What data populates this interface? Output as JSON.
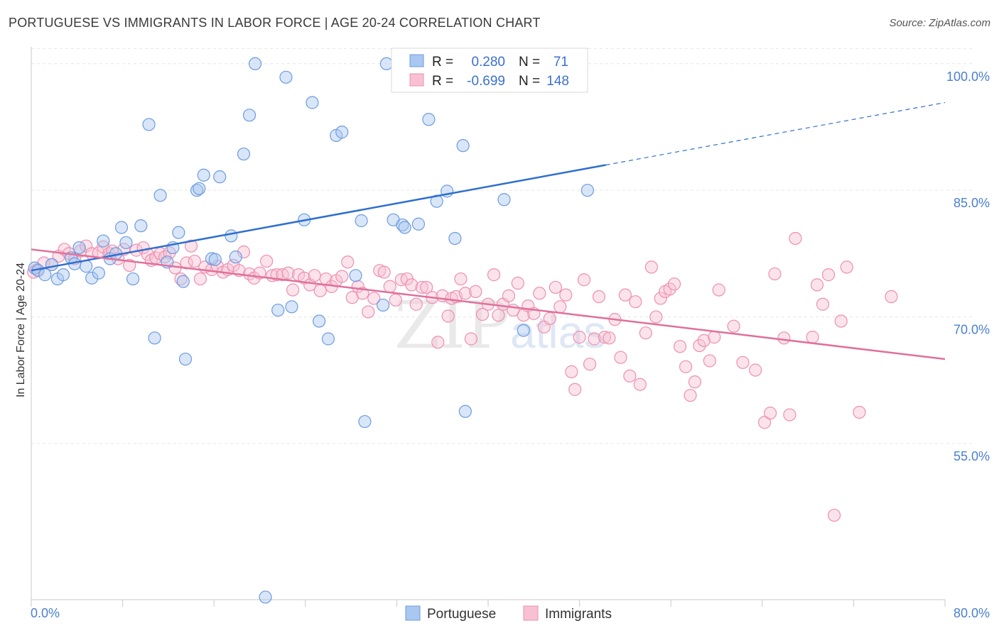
{
  "header": {
    "title": "PORTUGUESE VS IMMIGRANTS IN LABOR FORCE | AGE 20-24 CORRELATION CHART",
    "source": "Source: ZipAtlas.com"
  },
  "watermark": {
    "zip": "ZIP",
    "atlas": "atlas"
  },
  "chart_data": {
    "type": "scatter",
    "title": "PORTUGUESE VS IMMIGRANTS IN LABOR FORCE | AGE 20-24 CORRELATION CHART",
    "xlabel": "",
    "ylabel": "In Labor Force | Age 20-24",
    "xlim": [
      0,
      80
    ],
    "ylim": [
      36.5,
      102
    ],
    "x_tick_labels": [
      "0.0%",
      "80.0%"
    ],
    "y_ticks": [
      55,
      70,
      85,
      100
    ],
    "y_tick_labels": [
      "55.0%",
      "70.0%",
      "85.0%",
      "100.0%"
    ],
    "grid": true,
    "legend_position": "bottom-center",
    "colors": {
      "portuguese_fill": "#a9c7f0",
      "portuguese_stroke": "#6d9be0",
      "portuguese_line": "#2f6fd0",
      "immigrants_fill": "#f7c1d3",
      "immigrants_stroke": "#ee8fb0",
      "immigrants_line": "#e0709a"
    },
    "stats": [
      {
        "r_label": "R =",
        "r": "0.280",
        "n_label": "N =",
        "n": "71"
      },
      {
        "r_label": "R =",
        "r": "-0.699",
        "n_label": "N =",
        "n": "148"
      }
    ],
    "series": [
      {
        "name": "Portuguese",
        "trend": {
          "x": [
            0,
            50.3
          ],
          "y": [
            75.5,
            88.0
          ],
          "dashed_to": [
            80,
            95.4
          ]
        },
        "points": [
          [
            0.3,
            75.8
          ],
          [
            0.6,
            75.5
          ],
          [
            1.2,
            75.0
          ],
          [
            1.8,
            76.2
          ],
          [
            2.3,
            74.5
          ],
          [
            2.8,
            75.0
          ],
          [
            3.5,
            77.0
          ],
          [
            3.8,
            76.3
          ],
          [
            4.2,
            78.2
          ],
          [
            4.8,
            76.0
          ],
          [
            5.3,
            74.6
          ],
          [
            5.9,
            75.2
          ],
          [
            6.3,
            79.0
          ],
          [
            6.9,
            76.9
          ],
          [
            7.4,
            77.5
          ],
          [
            7.9,
            80.6
          ],
          [
            8.3,
            78.8
          ],
          [
            8.9,
            74.5
          ],
          [
            9.6,
            80.8
          ],
          [
            10.3,
            92.8
          ],
          [
            10.8,
            67.5
          ],
          [
            11.3,
            84.4
          ],
          [
            11.9,
            76.5
          ],
          [
            12.4,
            78.2
          ],
          [
            12.9,
            80.0
          ],
          [
            13.5,
            65.0
          ],
          [
            13.3,
            74.2
          ],
          [
            14.5,
            85.0
          ],
          [
            14.7,
            85.2
          ],
          [
            15.1,
            86.8
          ],
          [
            15.8,
            76.9
          ],
          [
            16.1,
            76.8
          ],
          [
            16.5,
            86.6
          ],
          [
            17.5,
            79.6
          ],
          [
            17.9,
            77.1
          ],
          [
            18.6,
            89.3
          ],
          [
            19.1,
            93.9
          ],
          [
            19.6,
            100.0
          ],
          [
            20.5,
            36.8
          ],
          [
            21.6,
            70.8
          ],
          [
            22.3,
            98.4
          ],
          [
            22.8,
            71.2
          ],
          [
            23.9,
            81.5
          ],
          [
            24.6,
            95.4
          ],
          [
            25.2,
            69.5
          ],
          [
            26.0,
            67.4
          ],
          [
            26.7,
            91.5
          ],
          [
            27.2,
            91.9
          ],
          [
            28.4,
            74.9
          ],
          [
            28.9,
            81.4
          ],
          [
            29.2,
            57.6
          ],
          [
            30.8,
            71.4
          ],
          [
            31.1,
            100.0
          ],
          [
            31.7,
            81.5
          ],
          [
            32.5,
            80.9
          ],
          [
            32.7,
            80.6
          ],
          [
            33.9,
            81.0
          ],
          [
            34.6,
            100.0
          ],
          [
            34.8,
            93.4
          ],
          [
            35.5,
            83.7
          ],
          [
            36.4,
            84.9
          ],
          [
            37.1,
            79.3
          ],
          [
            37.8,
            90.3
          ],
          [
            38.0,
            58.8
          ],
          [
            38.8,
            100.0
          ],
          [
            39.5,
            100.0
          ],
          [
            40.5,
            100.0
          ],
          [
            41.4,
            83.9
          ],
          [
            43.1,
            68.4
          ],
          [
            45.0,
            100.0
          ],
          [
            48.7,
            85.0
          ]
        ]
      },
      {
        "name": "Immigrants",
        "trend": {
          "x": [
            0,
            80
          ],
          "y": [
            78.0,
            65.0
          ]
        },
        "points": [
          [
            0.2,
            75.3
          ],
          [
            0.5,
            75.6
          ],
          [
            1.1,
            76.4
          ],
          [
            1.8,
            76.2
          ],
          [
            2.4,
            77.2
          ],
          [
            2.9,
            78.0
          ],
          [
            3.3,
            77.5
          ],
          [
            3.8,
            76.9
          ],
          [
            4.3,
            77.8
          ],
          [
            4.8,
            78.4
          ],
          [
            5.3,
            77.5
          ],
          [
            5.9,
            77.6
          ],
          [
            6.3,
            78.3
          ],
          [
            6.8,
            77.5
          ],
          [
            7.1,
            77.8
          ],
          [
            7.6,
            76.9
          ],
          [
            8.1,
            78.0
          ],
          [
            8.6,
            76.1
          ],
          [
            9.2,
            77.9
          ],
          [
            9.8,
            78.2
          ],
          [
            10.2,
            77.4
          ],
          [
            10.5,
            76.7
          ],
          [
            10.9,
            77.0
          ],
          [
            11.3,
            77.5
          ],
          [
            11.7,
            77.1
          ],
          [
            12.1,
            77.6
          ],
          [
            12.6,
            75.8
          ],
          [
            13.1,
            74.5
          ],
          [
            13.6,
            76.4
          ],
          [
            14.0,
            78.4
          ],
          [
            14.3,
            76.6
          ],
          [
            14.8,
            74.5
          ],
          [
            15.2,
            75.9
          ],
          [
            15.8,
            75.6
          ],
          [
            16.3,
            76.0
          ],
          [
            16.8,
            75.3
          ],
          [
            17.2,
            75.6
          ],
          [
            17.7,
            76.1
          ],
          [
            18.2,
            75.5
          ],
          [
            18.6,
            77.7
          ],
          [
            19.1,
            75.1
          ],
          [
            19.5,
            74.6
          ],
          [
            20.0,
            75.2
          ],
          [
            20.6,
            76.6
          ],
          [
            21.1,
            74.9
          ],
          [
            21.5,
            75.0
          ],
          [
            22.0,
            75.0
          ],
          [
            22.5,
            75.2
          ],
          [
            22.9,
            73.2
          ],
          [
            23.4,
            75.0
          ],
          [
            23.9,
            74.6
          ],
          [
            24.4,
            73.8
          ],
          [
            24.8,
            74.9
          ],
          [
            25.3,
            73.1
          ],
          [
            25.8,
            74.5
          ],
          [
            26.3,
            73.6
          ],
          [
            26.7,
            74.3
          ],
          [
            27.2,
            74.8
          ],
          [
            27.7,
            76.5
          ],
          [
            28.1,
            72.3
          ],
          [
            28.6,
            73.6
          ],
          [
            29.0,
            72.8
          ],
          [
            29.5,
            70.6
          ],
          [
            30.0,
            72.2
          ],
          [
            30.5,
            75.5
          ],
          [
            30.9,
            75.3
          ],
          [
            31.4,
            73.6
          ],
          [
            31.9,
            72.0
          ],
          [
            32.4,
            74.4
          ],
          [
            32.9,
            74.5
          ],
          [
            33.3,
            73.8
          ],
          [
            33.7,
            71.5
          ],
          [
            34.2,
            73.5
          ],
          [
            34.6,
            73.5
          ],
          [
            35.1,
            72.3
          ],
          [
            35.6,
            67.0
          ],
          [
            36.0,
            72.5
          ],
          [
            36.5,
            70.1
          ],
          [
            36.8,
            72.2
          ],
          [
            37.2,
            72.4
          ],
          [
            37.6,
            74.5
          ],
          [
            38.0,
            72.8
          ],
          [
            38.5,
            67.4
          ],
          [
            38.9,
            73.0
          ],
          [
            39.5,
            70.3
          ],
          [
            40.0,
            71.5
          ],
          [
            40.5,
            75.0
          ],
          [
            40.9,
            70.2
          ],
          [
            41.3,
            71.5
          ],
          [
            41.8,
            72.5
          ],
          [
            42.2,
            70.8
          ],
          [
            42.6,
            74.0
          ],
          [
            43.1,
            70.2
          ],
          [
            43.5,
            71.3
          ],
          [
            44.0,
            70.4
          ],
          [
            44.5,
            72.8
          ],
          [
            44.9,
            68.8
          ],
          [
            45.4,
            69.8
          ],
          [
            45.9,
            73.5
          ],
          [
            46.3,
            71.2
          ],
          [
            46.8,
            72.6
          ],
          [
            47.3,
            63.5
          ],
          [
            47.6,
            61.4
          ],
          [
            48.0,
            67.6
          ],
          [
            48.4,
            74.4
          ],
          [
            48.9,
            64.4
          ],
          [
            49.3,
            67.4
          ],
          [
            49.7,
            72.4
          ],
          [
            50.2,
            67.6
          ],
          [
            50.6,
            67.5
          ],
          [
            51.1,
            69.7
          ],
          [
            51.6,
            65.2
          ],
          [
            52.0,
            72.6
          ],
          [
            52.4,
            63.0
          ],
          [
            52.9,
            71.8
          ],
          [
            53.3,
            62.0
          ],
          [
            53.8,
            68.1
          ],
          [
            54.3,
            75.9
          ],
          [
            54.7,
            70.0
          ],
          [
            55.1,
            72.2
          ],
          [
            55.5,
            73.0
          ],
          [
            55.9,
            73.3
          ],
          [
            56.3,
            73.9
          ],
          [
            56.8,
            66.5
          ],
          [
            57.3,
            64.1
          ],
          [
            57.7,
            60.7
          ],
          [
            58.1,
            62.3
          ],
          [
            58.5,
            66.6
          ],
          [
            58.9,
            67.2
          ],
          [
            59.4,
            64.8
          ],
          [
            59.8,
            67.6
          ],
          [
            60.2,
            73.2
          ],
          [
            61.5,
            68.9
          ],
          [
            62.3,
            64.6
          ],
          [
            63.4,
            63.7
          ],
          [
            64.2,
            57.5
          ],
          [
            64.7,
            58.6
          ],
          [
            65.1,
            75.1
          ],
          [
            65.9,
            67.5
          ],
          [
            66.4,
            58.4
          ],
          [
            66.9,
            79.3
          ],
          [
            68.4,
            67.6
          ],
          [
            68.8,
            73.8
          ],
          [
            69.3,
            71.5
          ],
          [
            69.8,
            75.0
          ],
          [
            70.3,
            46.5
          ],
          [
            70.9,
            69.5
          ],
          [
            71.4,
            75.9
          ],
          [
            72.5,
            58.7
          ],
          [
            75.3,
            72.4
          ]
        ]
      }
    ]
  },
  "legend": [
    {
      "label": "Portuguese"
    },
    {
      "label": "Immigrants"
    }
  ]
}
